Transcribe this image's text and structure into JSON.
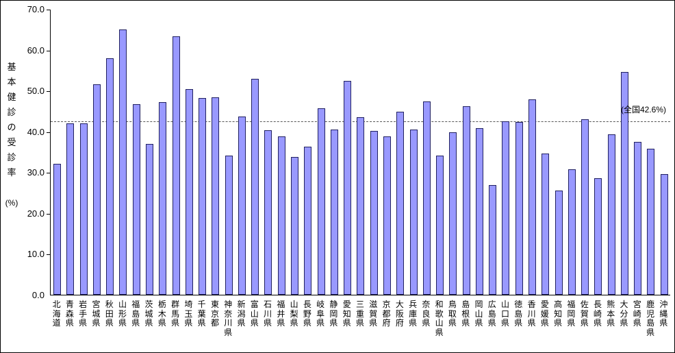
{
  "chart_data": {
    "type": "bar",
    "title": "",
    "xlabel": "",
    "ylabel": "基本健診の受診率",
    "ylabel_unit": "(%)",
    "ylim": [
      0,
      70
    ],
    "yticks": [
      0,
      10,
      20,
      30,
      40,
      50,
      60,
      70
    ],
    "ytick_labels": [
      "0.0",
      "10.0",
      "20.0",
      "30.0",
      "40.0",
      "50.0",
      "60.0",
      "70.0"
    ],
    "grid": "off",
    "legend": "none",
    "bar_color": "#9999FF",
    "bar_border_color": "#202060",
    "reference_line": {
      "value": 42.6,
      "label": "(全国42.6%)"
    },
    "categories": [
      "北海道",
      "青森県",
      "岩手県",
      "宮城県",
      "秋田県",
      "山形県",
      "福島県",
      "茨城県",
      "栃木県",
      "群馬県",
      "埼玉県",
      "千葉県",
      "東京都",
      "神奈川県",
      "新潟県",
      "富山県",
      "石川県",
      "福井県",
      "山梨県",
      "長野県",
      "岐阜県",
      "静岡県",
      "愛知県",
      "三重県",
      "滋賀県",
      "京都府",
      "大阪府",
      "兵庫県",
      "奈良県",
      "和歌山県",
      "鳥取県",
      "島根県",
      "岡山県",
      "広島県",
      "山口県",
      "徳島県",
      "香川県",
      "愛媛県",
      "高知県",
      "福岡県",
      "佐賀県",
      "長崎県",
      "熊本県",
      "大分県",
      "宮崎県",
      "鹿児島県",
      "沖縄県"
    ],
    "values": [
      32.0,
      42.0,
      42.0,
      51.5,
      58.0,
      65.0,
      46.7,
      37.0,
      47.2,
      63.3,
      50.3,
      48.1,
      48.4,
      34.0,
      43.7,
      52.9,
      40.3,
      38.8,
      33.7,
      36.2,
      45.7,
      40.5,
      52.4,
      43.5,
      40.2,
      38.7,
      44.8,
      40.5,
      47.4,
      34.0,
      39.8,
      46.2,
      40.8,
      26.8,
      42.4,
      42.3,
      47.8,
      34.5,
      25.5,
      30.7,
      43.0,
      28.6,
      39.3,
      54.5,
      37.5,
      35.8,
      29.6
    ]
  }
}
